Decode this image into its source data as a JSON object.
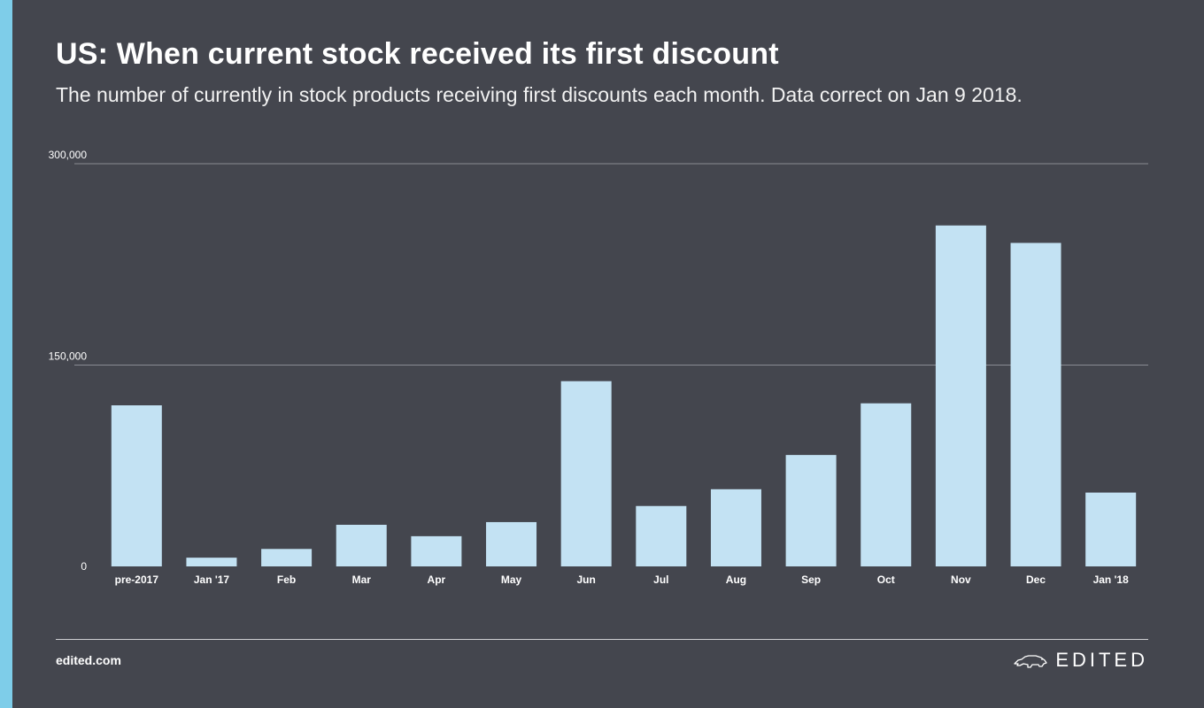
{
  "title": "US: When current stock received its first discount",
  "subtitle": "The number of currently in stock products receiving first discounts each month. Data correct on Jan 9 2018.",
  "footer": {
    "site": "edited.com",
    "logo_text": "EDITED"
  },
  "colors": {
    "background": "#44464e",
    "accent": "#7ecde9",
    "bar": "#c3e2f3",
    "gridline": "#8a8c93"
  },
  "chart_data": {
    "type": "bar",
    "categories": [
      "pre-2017",
      "Jan '17",
      "Feb",
      "Mar",
      "Apr",
      "May",
      "Jun",
      "Jul",
      "Aug",
      "Sep",
      "Oct",
      "Nov",
      "Dec",
      "Jan '18"
    ],
    "values": [
      120000,
      6500,
      13000,
      31000,
      22500,
      33000,
      138000,
      45000,
      57500,
      83000,
      121500,
      254000,
      241000,
      55000
    ],
    "ylim": [
      0,
      300000
    ],
    "yticks": [
      0,
      150000,
      300000
    ],
    "ytick_labels": [
      "0",
      "150,000",
      "300,000"
    ],
    "xlabel": "",
    "ylabel": "",
    "grid": true,
    "legend": "none"
  }
}
